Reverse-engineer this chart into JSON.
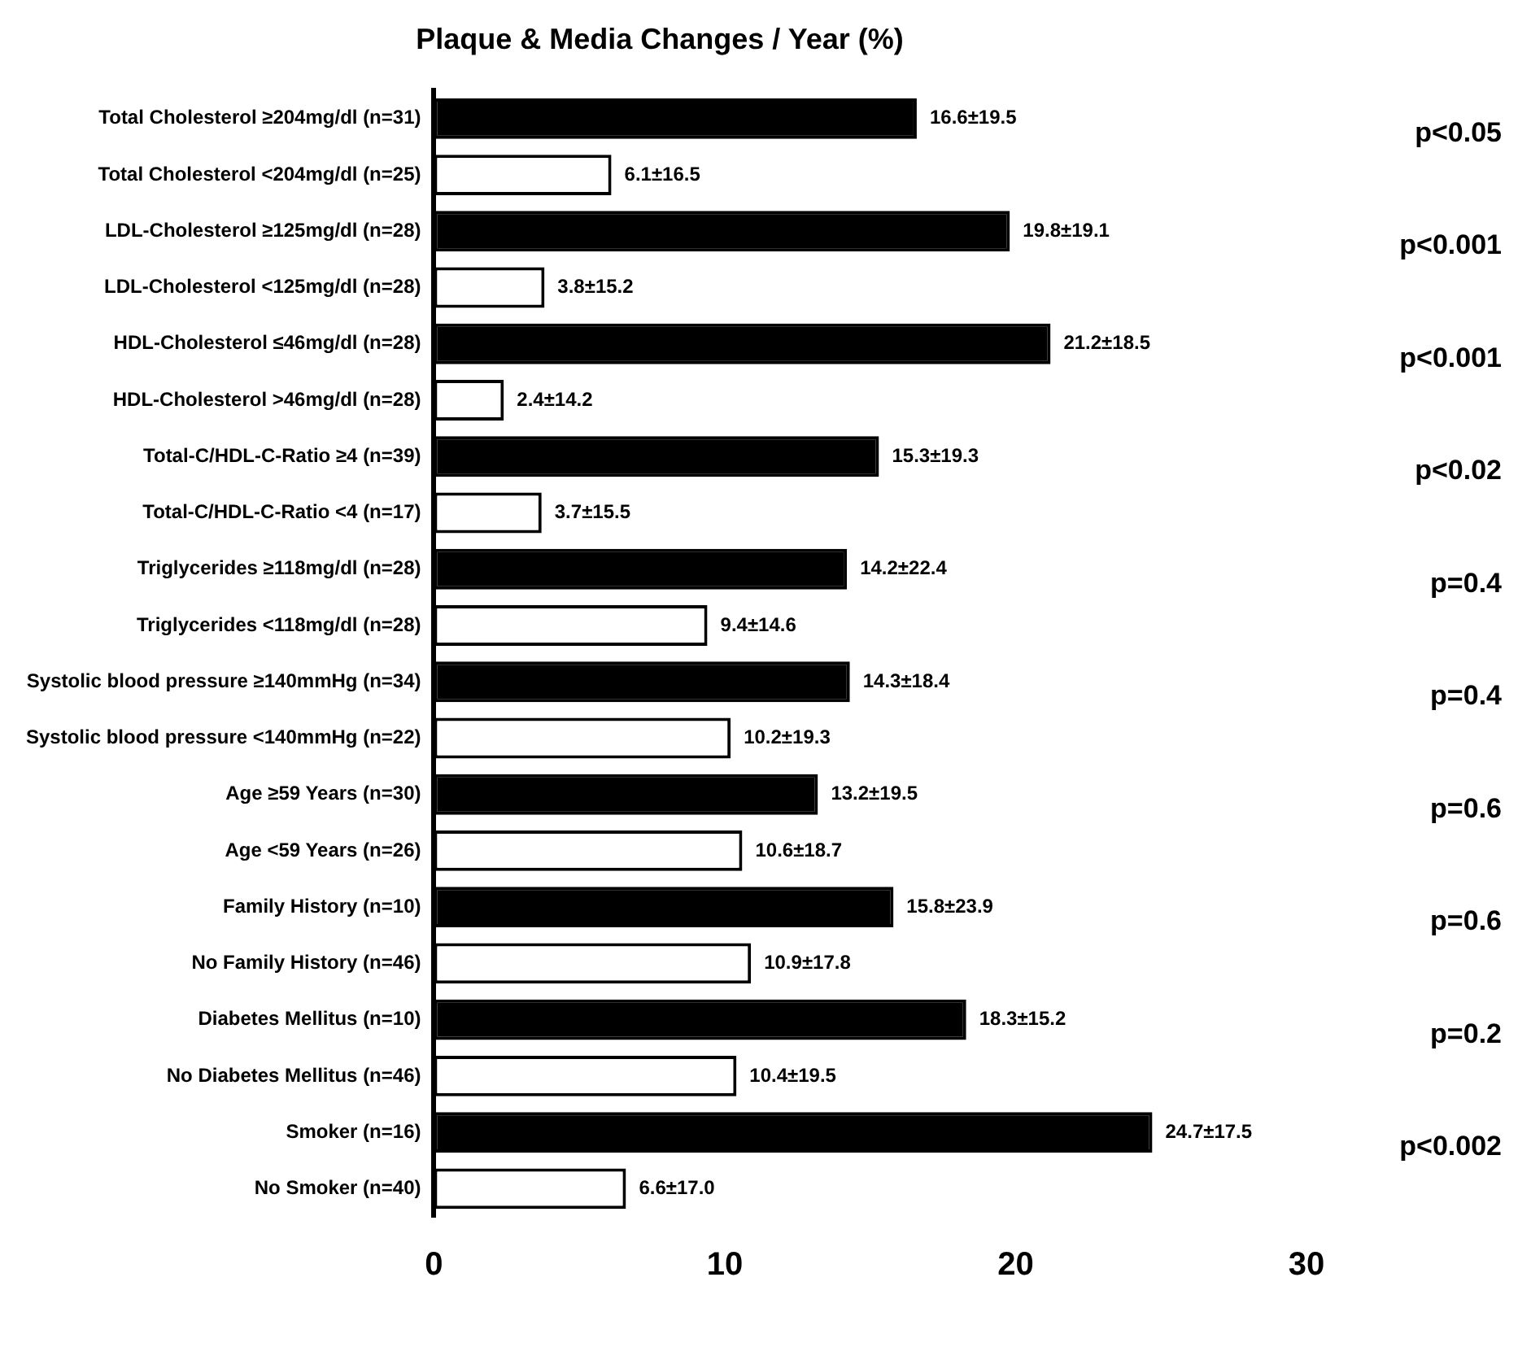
{
  "chart_data": {
    "type": "bar",
    "orientation": "horizontal",
    "title": "Plaque & Media Changes / Year (%)",
    "categories": [
      "Total Cholesterol ≥204mg/dl (n=31)",
      "Total Cholesterol <204mg/dl (n=25)",
      "LDL-Cholesterol ≥125mg/dl (n=28)",
      "LDL-Cholesterol <125mg/dl (n=28)",
      "HDL-Cholesterol ≤46mg/dl (n=28)",
      "HDL-Cholesterol >46mg/dl (n=28)",
      "Total-C/HDL-C-Ratio ≥4 (n=39)",
      "Total-C/HDL-C-Ratio <4 (n=17)",
      "Triglycerides ≥118mg/dl (n=28)",
      "Triglycerides <118mg/dl (n=28)",
      "Systolic blood pressure ≥140mmHg (n=34)",
      "Systolic blood pressure <140mmHg (n=22)",
      "Age ≥59 Years (n=30)",
      "Age <59 Years (n=26)",
      "Family History (n=10)",
      "No Family History (n=46)",
      "Diabetes Mellitus (n=10)",
      "No Diabetes Mellitus (n=46)",
      "Smoker (n=16)",
      "No Smoker (n=40)"
    ],
    "values": [
      16.6,
      6.1,
      19.8,
      3.8,
      21.2,
      2.4,
      15.3,
      3.7,
      14.2,
      9.4,
      14.3,
      10.2,
      13.2,
      10.6,
      15.8,
      10.9,
      18.3,
      10.4,
      24.7,
      6.6
    ],
    "value_labels": [
      "16.6±19.5",
      "6.1±16.5",
      "19.8±19.1",
      "3.8±15.2",
      "21.2±18.5",
      "2.4±14.2",
      "15.3±19.3",
      "3.7±15.5",
      "14.2±22.4",
      "9.4±14.6",
      "14.3±18.4",
      "10.2±19.3",
      "13.2±19.5",
      "10.6±18.7",
      "15.8±23.9",
      "10.9±17.8",
      "18.3±15.2",
      "10.4±19.5",
      "24.7±17.5",
      "6.6±17.0"
    ],
    "colors": [
      "#000000",
      "#ffffff",
      "#000000",
      "#ffffff",
      "#000000",
      "#ffffff",
      "#000000",
      "#ffffff",
      "#000000",
      "#ffffff",
      "#000000",
      "#ffffff",
      "#000000",
      "#ffffff",
      "#000000",
      "#ffffff",
      "#000000",
      "#ffffff",
      "#000000",
      "#ffffff"
    ],
    "annotations": [
      "p<0.05",
      "p<0.001",
      "p<0.001",
      "p<0.02",
      "p=0.4",
      "p=0.4",
      "p=0.6",
      "p=0.6",
      "p=0.2",
      "p<0.002"
    ],
    "xlim": [
      0,
      30
    ],
    "xticks": [
      0,
      10,
      20,
      30
    ],
    "grid": false,
    "legend": false
  }
}
